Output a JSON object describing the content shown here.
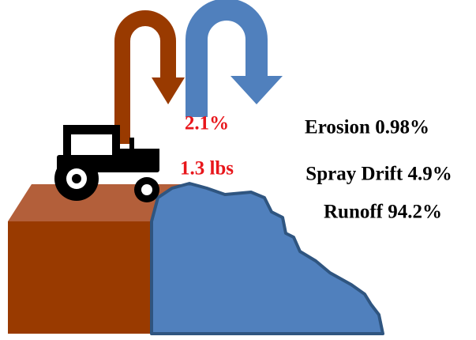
{
  "annotations": [
    "2.1%",
    "1.3 lbs"
  ],
  "pathways": [
    "Erosion 0.98%",
    "Spray Drift 4.9%",
    "Runoff 94.2%"
  ]
}
